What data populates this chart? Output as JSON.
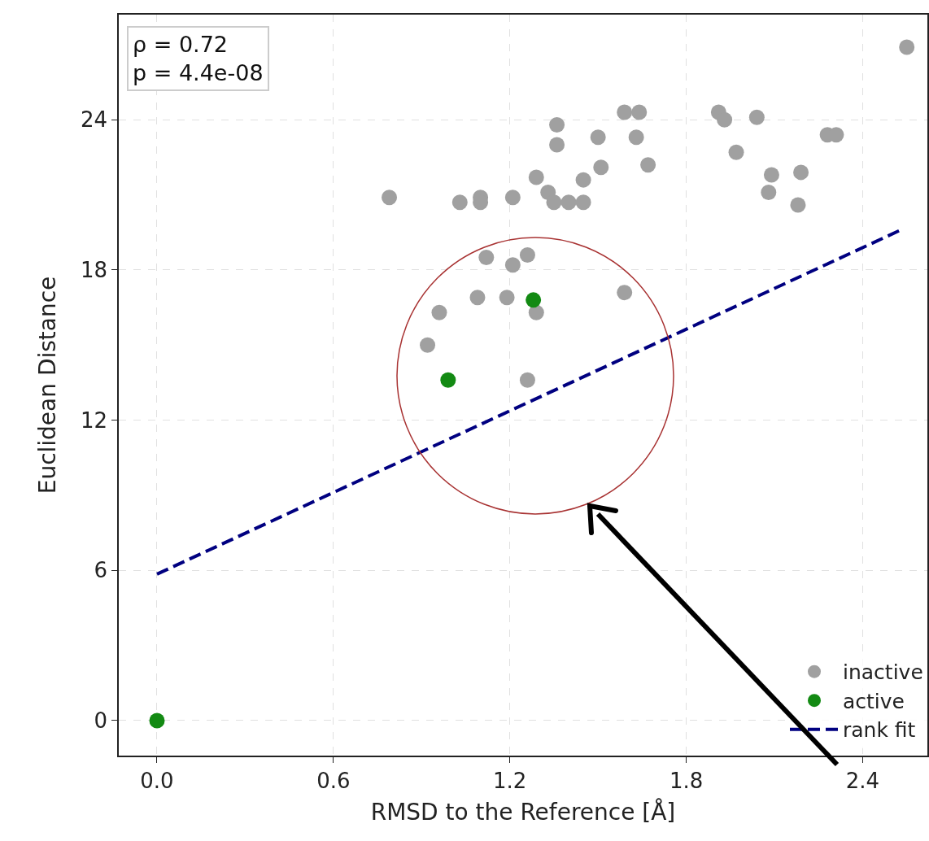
{
  "chart_data": {
    "type": "scatter",
    "xlabel": "RMSD to the Reference [Å]",
    "ylabel": "Euclidean Distance",
    "xlim": [
      -0.13,
      2.62
    ],
    "ylim": [
      -1.4,
      28.2
    ],
    "xticks": [
      {
        "value": 0,
        "label": "0.0"
      },
      0.6,
      1.2,
      1.8,
      2.4
    ],
    "yticks": [
      0,
      6,
      12,
      18,
      24
    ],
    "grid": true,
    "legend": "bottom right",
    "marker": "circle",
    "annotations": [
      "ρ = 0.72\np = 4.4e-08"
    ],
    "series": [
      {
        "name": "inactive",
        "color": "#a0a0a0",
        "x": [
          0.79,
          1.03,
          1.1,
          1.1,
          1.21,
          1.29,
          1.33,
          1.35,
          1.4,
          1.45,
          1.45,
          1.51,
          1.5,
          1.36,
          1.36,
          1.59,
          1.64,
          1.63,
          1.67,
          1.91,
          1.93,
          1.97,
          2.04,
          2.09,
          2.08,
          2.18,
          2.19,
          2.28,
          2.31,
          2.55,
          1.12,
          1.26,
          1.21,
          1.09,
          1.19,
          0.96,
          1.29,
          1.59,
          0.92,
          1.26
        ],
        "values": [
          20.9,
          20.7,
          20.9,
          20.7,
          20.9,
          21.7,
          21.1,
          20.7,
          20.7,
          20.7,
          21.6,
          22.1,
          23.3,
          23.0,
          23.8,
          24.3,
          24.3,
          23.3,
          22.2,
          24.3,
          24.0,
          22.7,
          24.1,
          21.8,
          21.1,
          20.6,
          21.9,
          23.4,
          23.4,
          26.9,
          18.5,
          18.6,
          18.2,
          16.9,
          16.9,
          16.3,
          16.3,
          17.1,
          15.0,
          13.6
        ]
      },
      {
        "name": "active",
        "color": "#138a13",
        "x": [
          0,
          0.99,
          1.28
        ],
        "values": [
          0,
          13.6,
          16.8
        ]
      },
      {
        "name": "rank fit",
        "type": "line",
        "marker": "none",
        "line_style": "dashed",
        "color": "#000080",
        "x": [
          0,
          2.53
        ],
        "values": [
          5.85,
          19.6
        ]
      }
    ]
  }
}
